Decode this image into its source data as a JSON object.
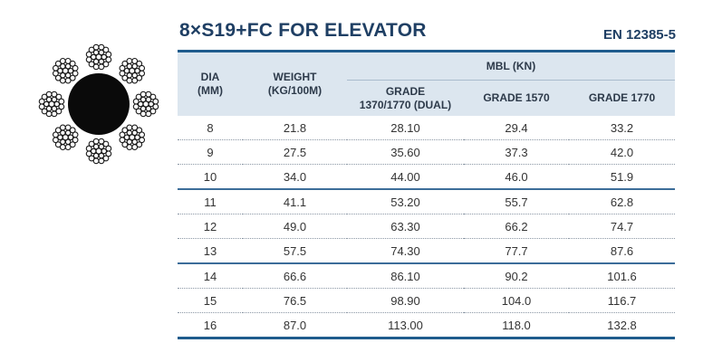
{
  "header": {
    "title": "8×S19+FC FOR ELEVATOR",
    "standard": "EN 12385-5"
  },
  "image": {
    "icon": "wire-rope-cross-section-icon",
    "colors": {
      "core": "#0a0a0a",
      "wire_stroke": "#1a1a1a",
      "wire_fill": "#ffffff"
    }
  },
  "colors": {
    "accent": "#1f5c8d",
    "header_bg": "#dce6ef",
    "title": "#1f3f64"
  },
  "table": {
    "headers": {
      "dia": "DIA\n(MM)",
      "weight": "WEIGHT\n(KG/100M)",
      "mbl": "MBL (KN)",
      "grade_dual": "GRADE\n1370/1770 (DUAL)",
      "grade_1570": "GRADE 1570",
      "grade_1770": "GRADE 1770"
    },
    "rows": [
      [
        "8",
        "21.8",
        "28.10",
        "29.4",
        "33.2"
      ],
      [
        "9",
        "27.5",
        "35.60",
        "37.3",
        "42.0"
      ],
      [
        "10",
        "34.0",
        "44.00",
        "46.0",
        "51.9"
      ],
      [
        "11",
        "41.1",
        "53.20",
        "55.7",
        "62.8"
      ],
      [
        "12",
        "49.0",
        "63.30",
        "66.2",
        "74.7"
      ],
      [
        "13",
        "57.5",
        "74.30",
        "77.7",
        "87.6"
      ],
      [
        "14",
        "66.6",
        "86.10",
        "90.2",
        "101.6"
      ],
      [
        "15",
        "76.5",
        "98.90",
        "104.0",
        "116.7"
      ],
      [
        "16",
        "87.0",
        "113.00",
        "118.0",
        "132.8"
      ]
    ]
  }
}
